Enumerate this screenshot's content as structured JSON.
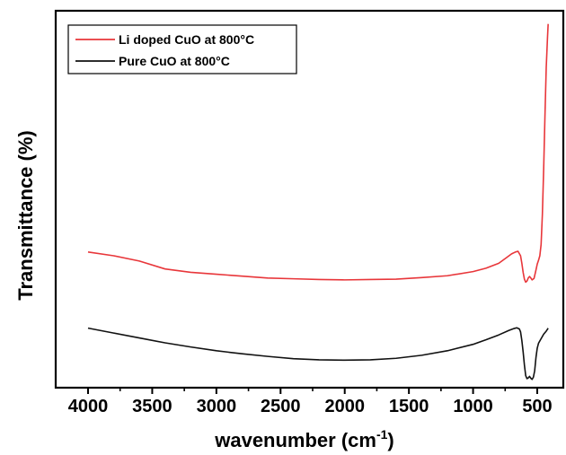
{
  "chart_data": {
    "type": "line",
    "title": "",
    "xlabel": "wavenumber (cm",
    "xlabel_sup": "-1",
    "xlabel_close": ")",
    "ylabel": "Transmittance (%)",
    "xlim": [
      4000,
      400
    ],
    "x_reversed": true,
    "y_ticks_shown": false,
    "grid": false,
    "legend_position": "top-left",
    "x_ticks": [
      "4000",
      "3500",
      "3000",
      "2500",
      "2000",
      "1500",
      "1000",
      "500"
    ],
    "series": [
      {
        "name": "Li doped CuO at 800°C",
        "color": "#e8363a",
        "points": [
          [
            4000,
            0.36
          ],
          [
            3800,
            0.35
          ],
          [
            3600,
            0.336
          ],
          [
            3400,
            0.315
          ],
          [
            3200,
            0.306
          ],
          [
            3000,
            0.301
          ],
          [
            2800,
            0.296
          ],
          [
            2600,
            0.291
          ],
          [
            2400,
            0.289
          ],
          [
            2200,
            0.287
          ],
          [
            2000,
            0.286
          ],
          [
            1800,
            0.287
          ],
          [
            1600,
            0.288
          ],
          [
            1400,
            0.292
          ],
          [
            1200,
            0.297
          ],
          [
            1000,
            0.308
          ],
          [
            900,
            0.317
          ],
          [
            800,
            0.33
          ],
          [
            740,
            0.345
          ],
          [
            700,
            0.355
          ],
          [
            670,
            0.36
          ],
          [
            650,
            0.362
          ],
          [
            630,
            0.35
          ],
          [
            620,
            0.33
          ],
          [
            610,
            0.306
          ],
          [
            600,
            0.288
          ],
          [
            590,
            0.28
          ],
          [
            580,
            0.283
          ],
          [
            570,
            0.291
          ],
          [
            560,
            0.295
          ],
          [
            550,
            0.291
          ],
          [
            540,
            0.286
          ],
          [
            525,
            0.29
          ],
          [
            510,
            0.312
          ],
          [
            500,
            0.328
          ],
          [
            490,
            0.338
          ],
          [
            480,
            0.35
          ],
          [
            470,
            0.38
          ],
          [
            460,
            0.46
          ],
          [
            450,
            0.58
          ],
          [
            440,
            0.72
          ],
          [
            430,
            0.85
          ],
          [
            420,
            0.93
          ],
          [
            415,
            0.965
          ]
        ]
      },
      {
        "name": "Pure CuO at 800°C",
        "color": "#111111",
        "points": [
          [
            4000,
            0.158
          ],
          [
            3800,
            0.145
          ],
          [
            3600,
            0.132
          ],
          [
            3400,
            0.119
          ],
          [
            3200,
            0.108
          ],
          [
            3000,
            0.098
          ],
          [
            2800,
            0.09
          ],
          [
            2600,
            0.083
          ],
          [
            2400,
            0.077
          ],
          [
            2200,
            0.074
          ],
          [
            2000,
            0.073
          ],
          [
            1800,
            0.074
          ],
          [
            1600,
            0.078
          ],
          [
            1400,
            0.086
          ],
          [
            1200,
            0.098
          ],
          [
            1000,
            0.115
          ],
          [
            900,
            0.127
          ],
          [
            800,
            0.14
          ],
          [
            720,
            0.152
          ],
          [
            680,
            0.157
          ],
          [
            660,
            0.159
          ],
          [
            640,
            0.156
          ],
          [
            630,
            0.148
          ],
          [
            620,
            0.125
          ],
          [
            610,
            0.095
          ],
          [
            600,
            0.06
          ],
          [
            590,
            0.032
          ],
          [
            580,
            0.024
          ],
          [
            570,
            0.026
          ],
          [
            560,
            0.03
          ],
          [
            550,
            0.025
          ],
          [
            540,
            0.022
          ],
          [
            530,
            0.028
          ],
          [
            520,
            0.045
          ],
          [
            510,
            0.08
          ],
          [
            500,
            0.105
          ],
          [
            490,
            0.118
          ],
          [
            470,
            0.13
          ],
          [
            450,
            0.142
          ],
          [
            430,
            0.15
          ],
          [
            415,
            0.158
          ]
        ]
      }
    ]
  }
}
